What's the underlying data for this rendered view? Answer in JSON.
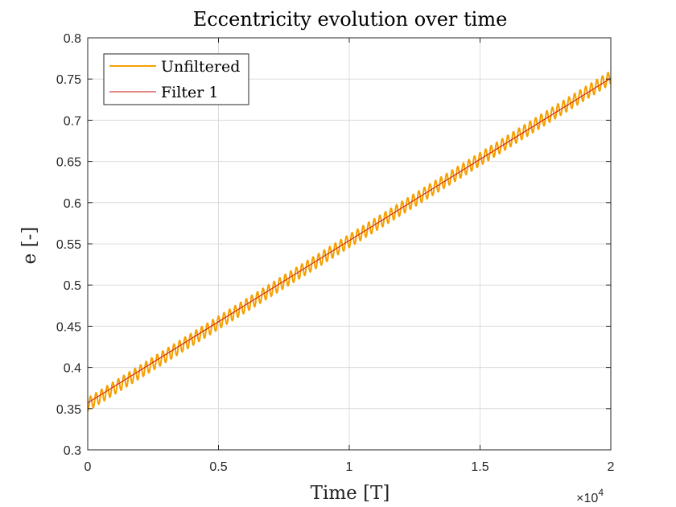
{
  "chart_data": {
    "type": "line",
    "title": "Eccentricity evolution over time",
    "xlabel": "Time [T]",
    "ylabel": "e [-]",
    "xlim": [
      0,
      2
    ],
    "ylim": [
      0.3,
      0.8
    ],
    "x_multiplier": {
      "times": "×",
      "base": "10",
      "exponent": "4"
    },
    "xticks": [
      0,
      0.5,
      1,
      1.5,
      2
    ],
    "xtick_labels": [
      "0",
      "0.5",
      "1",
      "1.5",
      "2"
    ],
    "yticks": [
      0.3,
      0.35,
      0.4,
      0.45,
      0.5,
      0.55,
      0.6,
      0.65,
      0.7,
      0.75,
      0.8
    ],
    "ytick_labels": [
      "0.3",
      "0.35",
      "0.4",
      "0.45",
      "0.5",
      "0.55",
      "0.6",
      "0.65",
      "0.7",
      "0.75",
      "0.8"
    ],
    "grid": true,
    "legend_position": "top-left",
    "series": [
      {
        "name": "Unfiltered",
        "color": "#f5a000",
        "trend_start": [
          0,
          0.355
        ],
        "trend_end": [
          2,
          0.752
        ],
        "oscillation_amplitude": 0.008,
        "oscillation_cycles": 94
      },
      {
        "name": "Filter 1",
        "color": "#cc1111",
        "x": [
          0,
          2
        ],
        "y": [
          0.357,
          0.751
        ]
      }
    ]
  }
}
